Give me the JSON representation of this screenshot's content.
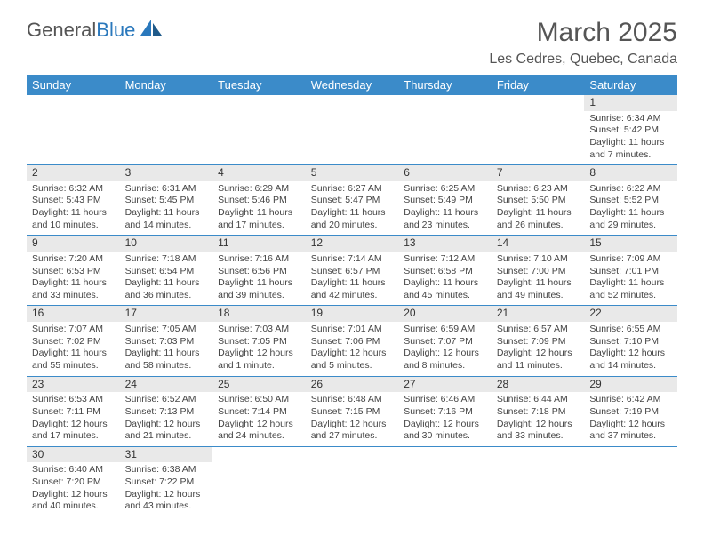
{
  "logo": {
    "text1": "General",
    "text2": "Blue"
  },
  "title": "March 2025",
  "location": "Les Cedres, Quebec, Canada",
  "colors": {
    "header_bg": "#3b8bc9",
    "header_text": "#ffffff",
    "daynum_bg": "#e9e9e9",
    "border": "#3b8bc9",
    "logo_blue": "#2a78bc",
    "body_text": "#444444"
  },
  "weekdays": [
    "Sunday",
    "Monday",
    "Tuesday",
    "Wednesday",
    "Thursday",
    "Friday",
    "Saturday"
  ],
  "weeks": [
    [
      null,
      null,
      null,
      null,
      null,
      null,
      {
        "n": "1",
        "sr": "Sunrise: 6:34 AM",
        "ss": "Sunset: 5:42 PM",
        "d1": "Daylight: 11 hours",
        "d2": "and 7 minutes."
      }
    ],
    [
      {
        "n": "2",
        "sr": "Sunrise: 6:32 AM",
        "ss": "Sunset: 5:43 PM",
        "d1": "Daylight: 11 hours",
        "d2": "and 10 minutes."
      },
      {
        "n": "3",
        "sr": "Sunrise: 6:31 AM",
        "ss": "Sunset: 5:45 PM",
        "d1": "Daylight: 11 hours",
        "d2": "and 14 minutes."
      },
      {
        "n": "4",
        "sr": "Sunrise: 6:29 AM",
        "ss": "Sunset: 5:46 PM",
        "d1": "Daylight: 11 hours",
        "d2": "and 17 minutes."
      },
      {
        "n": "5",
        "sr": "Sunrise: 6:27 AM",
        "ss": "Sunset: 5:47 PM",
        "d1": "Daylight: 11 hours",
        "d2": "and 20 minutes."
      },
      {
        "n": "6",
        "sr": "Sunrise: 6:25 AM",
        "ss": "Sunset: 5:49 PM",
        "d1": "Daylight: 11 hours",
        "d2": "and 23 minutes."
      },
      {
        "n": "7",
        "sr": "Sunrise: 6:23 AM",
        "ss": "Sunset: 5:50 PM",
        "d1": "Daylight: 11 hours",
        "d2": "and 26 minutes."
      },
      {
        "n": "8",
        "sr": "Sunrise: 6:22 AM",
        "ss": "Sunset: 5:52 PM",
        "d1": "Daylight: 11 hours",
        "d2": "and 29 minutes."
      }
    ],
    [
      {
        "n": "9",
        "sr": "Sunrise: 7:20 AM",
        "ss": "Sunset: 6:53 PM",
        "d1": "Daylight: 11 hours",
        "d2": "and 33 minutes."
      },
      {
        "n": "10",
        "sr": "Sunrise: 7:18 AM",
        "ss": "Sunset: 6:54 PM",
        "d1": "Daylight: 11 hours",
        "d2": "and 36 minutes."
      },
      {
        "n": "11",
        "sr": "Sunrise: 7:16 AM",
        "ss": "Sunset: 6:56 PM",
        "d1": "Daylight: 11 hours",
        "d2": "and 39 minutes."
      },
      {
        "n": "12",
        "sr": "Sunrise: 7:14 AM",
        "ss": "Sunset: 6:57 PM",
        "d1": "Daylight: 11 hours",
        "d2": "and 42 minutes."
      },
      {
        "n": "13",
        "sr": "Sunrise: 7:12 AM",
        "ss": "Sunset: 6:58 PM",
        "d1": "Daylight: 11 hours",
        "d2": "and 45 minutes."
      },
      {
        "n": "14",
        "sr": "Sunrise: 7:10 AM",
        "ss": "Sunset: 7:00 PM",
        "d1": "Daylight: 11 hours",
        "d2": "and 49 minutes."
      },
      {
        "n": "15",
        "sr": "Sunrise: 7:09 AM",
        "ss": "Sunset: 7:01 PM",
        "d1": "Daylight: 11 hours",
        "d2": "and 52 minutes."
      }
    ],
    [
      {
        "n": "16",
        "sr": "Sunrise: 7:07 AM",
        "ss": "Sunset: 7:02 PM",
        "d1": "Daylight: 11 hours",
        "d2": "and 55 minutes."
      },
      {
        "n": "17",
        "sr": "Sunrise: 7:05 AM",
        "ss": "Sunset: 7:03 PM",
        "d1": "Daylight: 11 hours",
        "d2": "and 58 minutes."
      },
      {
        "n": "18",
        "sr": "Sunrise: 7:03 AM",
        "ss": "Sunset: 7:05 PM",
        "d1": "Daylight: 12 hours",
        "d2": "and 1 minute."
      },
      {
        "n": "19",
        "sr": "Sunrise: 7:01 AM",
        "ss": "Sunset: 7:06 PM",
        "d1": "Daylight: 12 hours",
        "d2": "and 5 minutes."
      },
      {
        "n": "20",
        "sr": "Sunrise: 6:59 AM",
        "ss": "Sunset: 7:07 PM",
        "d1": "Daylight: 12 hours",
        "d2": "and 8 minutes."
      },
      {
        "n": "21",
        "sr": "Sunrise: 6:57 AM",
        "ss": "Sunset: 7:09 PM",
        "d1": "Daylight: 12 hours",
        "d2": "and 11 minutes."
      },
      {
        "n": "22",
        "sr": "Sunrise: 6:55 AM",
        "ss": "Sunset: 7:10 PM",
        "d1": "Daylight: 12 hours",
        "d2": "and 14 minutes."
      }
    ],
    [
      {
        "n": "23",
        "sr": "Sunrise: 6:53 AM",
        "ss": "Sunset: 7:11 PM",
        "d1": "Daylight: 12 hours",
        "d2": "and 17 minutes."
      },
      {
        "n": "24",
        "sr": "Sunrise: 6:52 AM",
        "ss": "Sunset: 7:13 PM",
        "d1": "Daylight: 12 hours",
        "d2": "and 21 minutes."
      },
      {
        "n": "25",
        "sr": "Sunrise: 6:50 AM",
        "ss": "Sunset: 7:14 PM",
        "d1": "Daylight: 12 hours",
        "d2": "and 24 minutes."
      },
      {
        "n": "26",
        "sr": "Sunrise: 6:48 AM",
        "ss": "Sunset: 7:15 PM",
        "d1": "Daylight: 12 hours",
        "d2": "and 27 minutes."
      },
      {
        "n": "27",
        "sr": "Sunrise: 6:46 AM",
        "ss": "Sunset: 7:16 PM",
        "d1": "Daylight: 12 hours",
        "d2": "and 30 minutes."
      },
      {
        "n": "28",
        "sr": "Sunrise: 6:44 AM",
        "ss": "Sunset: 7:18 PM",
        "d1": "Daylight: 12 hours",
        "d2": "and 33 minutes."
      },
      {
        "n": "29",
        "sr": "Sunrise: 6:42 AM",
        "ss": "Sunset: 7:19 PM",
        "d1": "Daylight: 12 hours",
        "d2": "and 37 minutes."
      }
    ],
    [
      {
        "n": "30",
        "sr": "Sunrise: 6:40 AM",
        "ss": "Sunset: 7:20 PM",
        "d1": "Daylight: 12 hours",
        "d2": "and 40 minutes."
      },
      {
        "n": "31",
        "sr": "Sunrise: 6:38 AM",
        "ss": "Sunset: 7:22 PM",
        "d1": "Daylight: 12 hours",
        "d2": "and 43 minutes."
      },
      null,
      null,
      null,
      null,
      null
    ]
  ]
}
